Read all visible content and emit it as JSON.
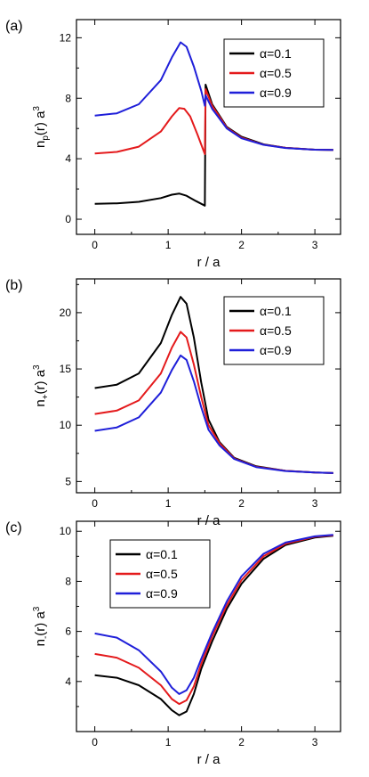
{
  "chart_data": [
    {
      "type": "line",
      "panel_label": "(a)",
      "xlabel": "r / a",
      "ylabel_main": "n",
      "ylabel_sub": "p",
      "ylabel_rest": "(r) a",
      "ylabel_sup": "3",
      "xlim": [
        -0.25,
        3.35
      ],
      "ylim": [
        -1.0,
        13.2
      ],
      "xticks": [
        0,
        1,
        2,
        3
      ],
      "yticks": [
        0,
        4,
        8,
        12
      ],
      "legend_position": "top-right",
      "series": [
        {
          "name": "α=0.1",
          "color": "#000000",
          "points": [
            [
              0,
              1.02
            ],
            [
              0.3,
              1.05
            ],
            [
              0.6,
              1.15
            ],
            [
              0.9,
              1.4
            ],
            [
              1.05,
              1.62
            ],
            [
              1.15,
              1.7
            ],
            [
              1.25,
              1.55
            ],
            [
              1.38,
              1.2
            ],
            [
              1.5,
              0.9
            ],
            [
              1.51,
              8.9
            ],
            [
              1.6,
              7.6
            ],
            [
              1.8,
              6.1
            ],
            [
              2.0,
              5.45
            ],
            [
              2.3,
              4.95
            ],
            [
              2.6,
              4.72
            ],
            [
              3.0,
              4.6
            ],
            [
              3.25,
              4.58
            ]
          ]
        },
        {
          "name": "α=0.5",
          "color": "#e41a1c",
          "points": [
            [
              0,
              4.35
            ],
            [
              0.3,
              4.45
            ],
            [
              0.6,
              4.8
            ],
            [
              0.9,
              5.8
            ],
            [
              1.05,
              6.8
            ],
            [
              1.15,
              7.35
            ],
            [
              1.22,
              7.3
            ],
            [
              1.3,
              6.8
            ],
            [
              1.4,
              5.6
            ],
            [
              1.5,
              4.3
            ],
            [
              1.51,
              8.6
            ],
            [
              1.6,
              7.5
            ],
            [
              1.8,
              6.05
            ],
            [
              2.0,
              5.4
            ],
            [
              2.3,
              4.93
            ],
            [
              2.6,
              4.72
            ],
            [
              3.0,
              4.6
            ],
            [
              3.25,
              4.58
            ]
          ]
        },
        {
          "name": "α=0.9",
          "color": "#1f1fd9",
          "points": [
            [
              0,
              6.85
            ],
            [
              0.3,
              7.0
            ],
            [
              0.6,
              7.6
            ],
            [
              0.9,
              9.2
            ],
            [
              1.05,
              10.7
            ],
            [
              1.17,
              11.7
            ],
            [
              1.25,
              11.4
            ],
            [
              1.35,
              10.1
            ],
            [
              1.45,
              8.5
            ],
            [
              1.5,
              7.5
            ],
            [
              1.51,
              8.2
            ],
            [
              1.6,
              7.3
            ],
            [
              1.8,
              6.0
            ],
            [
              2.0,
              5.35
            ],
            [
              2.3,
              4.92
            ],
            [
              2.6,
              4.71
            ],
            [
              3.0,
              4.6
            ],
            [
              3.25,
              4.58
            ]
          ]
        }
      ]
    },
    {
      "type": "line",
      "panel_label": "(b)",
      "xlabel": "r / a",
      "ylabel_main": "n",
      "ylabel_sub": "+",
      "ylabel_rest": "(r) a",
      "ylabel_sup": "3",
      "xlim": [
        -0.25,
        3.35
      ],
      "ylim": [
        4.0,
        23.0
      ],
      "xticks": [
        0,
        1,
        2,
        3
      ],
      "yticks": [
        5,
        10,
        15,
        20
      ],
      "legend_position": "top-right",
      "series": [
        {
          "name": "α=0.1",
          "color": "#000000",
          "points": [
            [
              0,
              13.3
            ],
            [
              0.3,
              13.6
            ],
            [
              0.6,
              14.6
            ],
            [
              0.9,
              17.3
            ],
            [
              1.05,
              19.8
            ],
            [
              1.17,
              21.4
            ],
            [
              1.25,
              20.8
            ],
            [
              1.35,
              17.8
            ],
            [
              1.45,
              13.8
            ],
            [
              1.55,
              10.5
            ],
            [
              1.7,
              8.5
            ],
            [
              1.9,
              7.1
            ],
            [
              2.2,
              6.35
            ],
            [
              2.6,
              5.95
            ],
            [
              3.0,
              5.8
            ],
            [
              3.25,
              5.75
            ]
          ]
        },
        {
          "name": "α=0.5",
          "color": "#e41a1c",
          "points": [
            [
              0,
              11.0
            ],
            [
              0.3,
              11.3
            ],
            [
              0.6,
              12.2
            ],
            [
              0.9,
              14.6
            ],
            [
              1.05,
              16.9
            ],
            [
              1.17,
              18.3
            ],
            [
              1.25,
              17.8
            ],
            [
              1.35,
              15.4
            ],
            [
              1.45,
              12.5
            ],
            [
              1.55,
              10.0
            ],
            [
              1.7,
              8.4
            ],
            [
              1.9,
              7.05
            ],
            [
              2.2,
              6.3
            ],
            [
              2.6,
              5.95
            ],
            [
              3.0,
              5.8
            ],
            [
              3.25,
              5.75
            ]
          ]
        },
        {
          "name": "α=0.9",
          "color": "#1f1fd9",
          "points": [
            [
              0,
              9.5
            ],
            [
              0.3,
              9.8
            ],
            [
              0.6,
              10.7
            ],
            [
              0.9,
              12.9
            ],
            [
              1.05,
              14.9
            ],
            [
              1.17,
              16.2
            ],
            [
              1.25,
              15.8
            ],
            [
              1.35,
              13.9
            ],
            [
              1.45,
              11.6
            ],
            [
              1.55,
              9.6
            ],
            [
              1.7,
              8.2
            ],
            [
              1.9,
              7.0
            ],
            [
              2.2,
              6.28
            ],
            [
              2.6,
              5.93
            ],
            [
              3.0,
              5.8
            ],
            [
              3.25,
              5.75
            ]
          ]
        }
      ]
    },
    {
      "type": "line",
      "panel_label": "(c)",
      "xlabel": "r / a",
      "ylabel_main": "n",
      "ylabel_sub": "-",
      "ylabel_rest": "(r) a",
      "ylabel_sup": "3",
      "xlim": [
        -0.25,
        3.35
      ],
      "ylim": [
        2.0,
        10.4
      ],
      "xticks": [
        0,
        1,
        2,
        3
      ],
      "yticks": [
        4,
        6,
        8,
        10
      ],
      "legend_position": "top-left",
      "series": [
        {
          "name": "α=0.1",
          "color": "#000000",
          "points": [
            [
              0,
              4.25
            ],
            [
              0.3,
              4.15
            ],
            [
              0.6,
              3.85
            ],
            [
              0.9,
              3.3
            ],
            [
              1.05,
              2.85
            ],
            [
              1.15,
              2.65
            ],
            [
              1.25,
              2.8
            ],
            [
              1.35,
              3.5
            ],
            [
              1.45,
              4.5
            ],
            [
              1.6,
              5.6
            ],
            [
              1.8,
              6.9
            ],
            [
              2.0,
              7.9
            ],
            [
              2.3,
              8.9
            ],
            [
              2.6,
              9.45
            ],
            [
              3.0,
              9.75
            ],
            [
              3.25,
              9.82
            ]
          ]
        },
        {
          "name": "α=0.5",
          "color": "#e41a1c",
          "points": [
            [
              0,
              5.1
            ],
            [
              0.3,
              4.95
            ],
            [
              0.6,
              4.55
            ],
            [
              0.9,
              3.85
            ],
            [
              1.05,
              3.3
            ],
            [
              1.15,
              3.1
            ],
            [
              1.25,
              3.25
            ],
            [
              1.35,
              3.8
            ],
            [
              1.45,
              4.7
            ],
            [
              1.6,
              5.8
            ],
            [
              1.8,
              7.05
            ],
            [
              2.0,
              8.05
            ],
            [
              2.3,
              9.0
            ],
            [
              2.6,
              9.5
            ],
            [
              3.0,
              9.78
            ],
            [
              3.25,
              9.84
            ]
          ]
        },
        {
          "name": "α=0.9",
          "color": "#1f1fd9",
          "points": [
            [
              0,
              5.92
            ],
            [
              0.3,
              5.75
            ],
            [
              0.6,
              5.25
            ],
            [
              0.9,
              4.4
            ],
            [
              1.05,
              3.75
            ],
            [
              1.15,
              3.5
            ],
            [
              1.25,
              3.65
            ],
            [
              1.35,
              4.15
            ],
            [
              1.45,
              4.9
            ],
            [
              1.6,
              5.95
            ],
            [
              1.8,
              7.2
            ],
            [
              2.0,
              8.2
            ],
            [
              2.3,
              9.1
            ],
            [
              2.6,
              9.55
            ],
            [
              3.0,
              9.8
            ],
            [
              3.25,
              9.86
            ]
          ]
        }
      ]
    }
  ]
}
